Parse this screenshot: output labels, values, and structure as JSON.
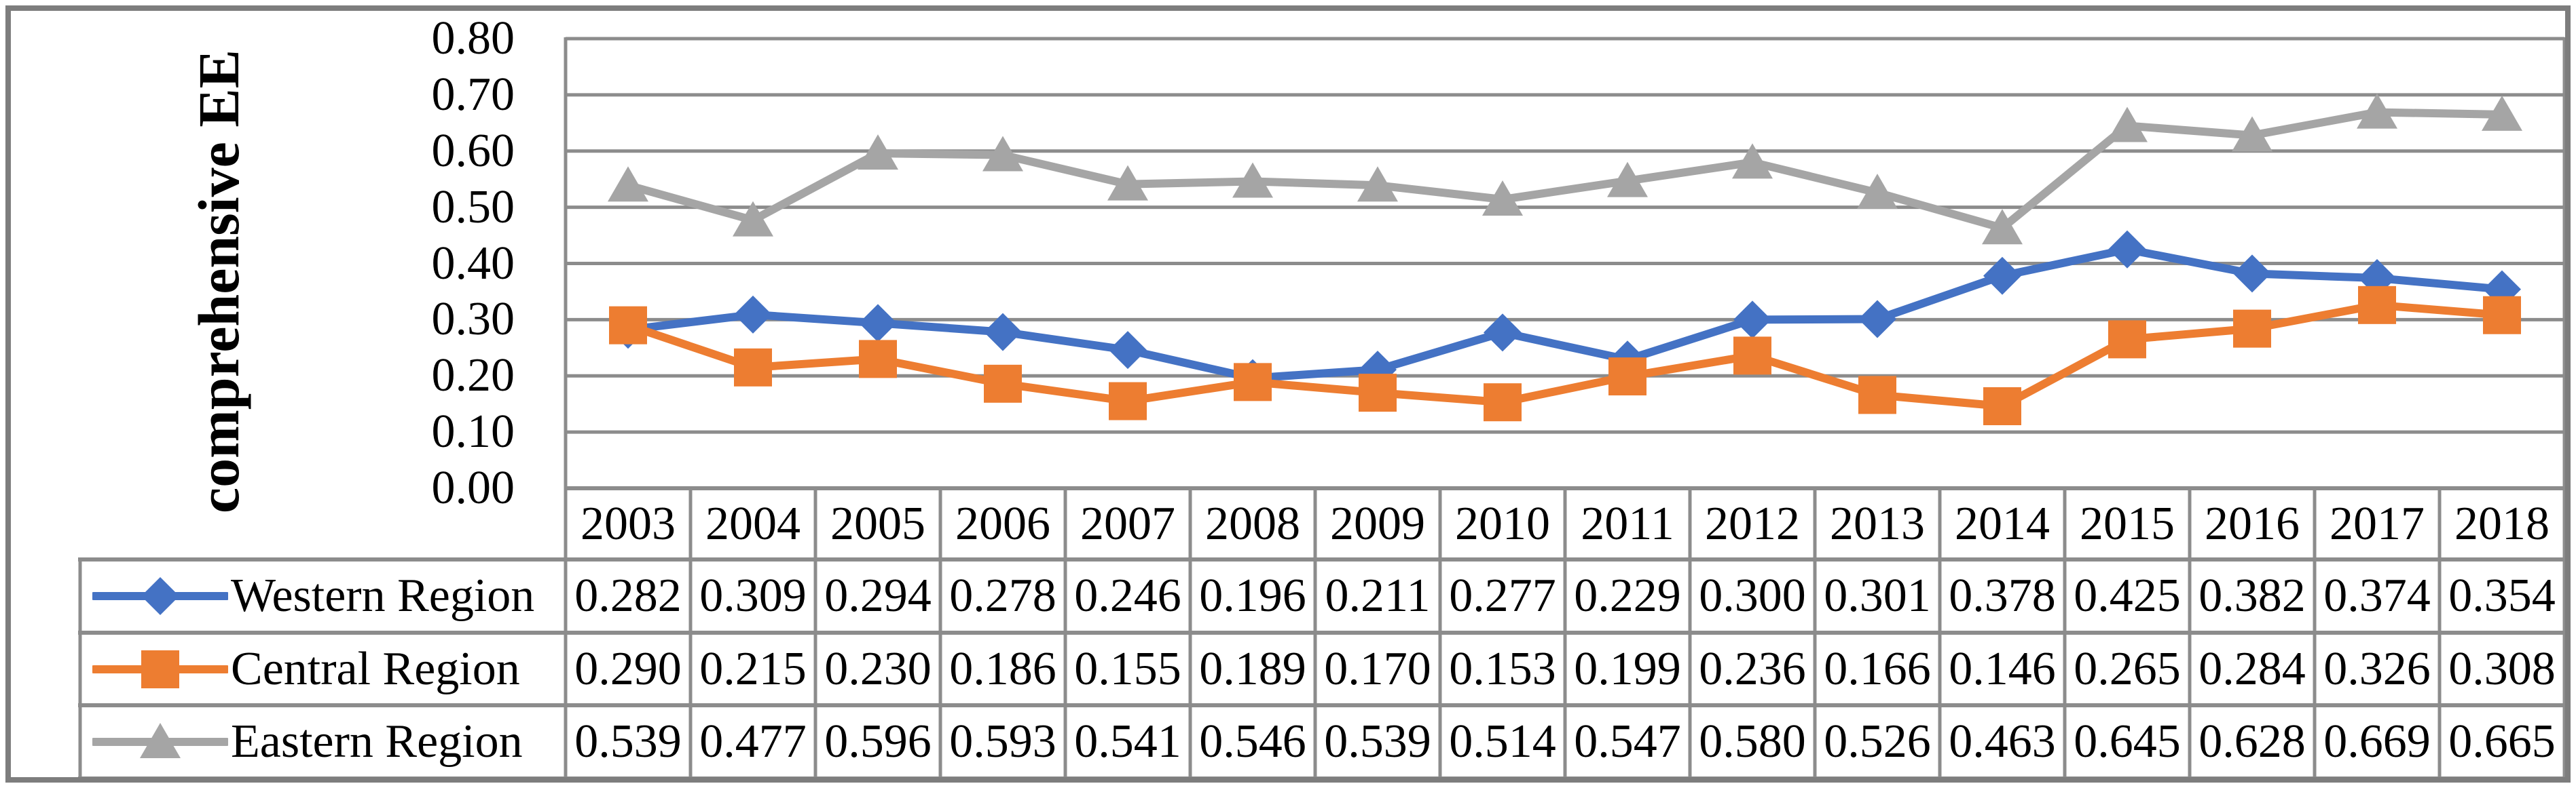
{
  "chart_data": {
    "type": "line",
    "title": "",
    "ylabel": "comprehensive EE",
    "xlabel": "",
    "categories": [
      2003,
      2004,
      2005,
      2006,
      2007,
      2008,
      2009,
      2010,
      2011,
      2012,
      2013,
      2014,
      2015,
      2016,
      2017,
      2018
    ],
    "series": [
      {
        "name": "Western Region",
        "marker": "diamond",
        "color": "#4472C4",
        "values": [
          0.282,
          0.309,
          0.294,
          0.278,
          0.246,
          0.196,
          0.211,
          0.277,
          0.229,
          0.3,
          0.301,
          0.378,
          0.425,
          0.382,
          0.374,
          0.354
        ]
      },
      {
        "name": "Central Region",
        "marker": "square",
        "color": "#ED7D31",
        "values": [
          0.29,
          0.215,
          0.23,
          0.186,
          0.155,
          0.189,
          0.17,
          0.153,
          0.199,
          0.236,
          0.166,
          0.146,
          0.265,
          0.284,
          0.326,
          0.308
        ]
      },
      {
        "name": "Eastern Region",
        "marker": "triangle",
        "color": "#A5A5A5",
        "values": [
          0.539,
          0.477,
          0.596,
          0.593,
          0.541,
          0.546,
          0.539,
          0.514,
          0.547,
          0.58,
          0.526,
          0.463,
          0.645,
          0.628,
          0.669,
          0.665
        ]
      }
    ],
    "ylim": [
      0.0,
      0.8
    ],
    "ytick_step": 0.1,
    "ytick_labels": [
      "0.00",
      "0.10",
      "0.20",
      "0.30",
      "0.40",
      "0.50",
      "0.60",
      "0.70",
      "0.80"
    ],
    "value_decimals": 3,
    "grid": "horizontal",
    "legend_position": "table-left",
    "colors": {
      "grid_line": "#8c8c8c",
      "table_border": "#8c8c8c",
      "outer_border": "#7d7d7d",
      "text": "#000000",
      "background": "#ffffff"
    }
  }
}
